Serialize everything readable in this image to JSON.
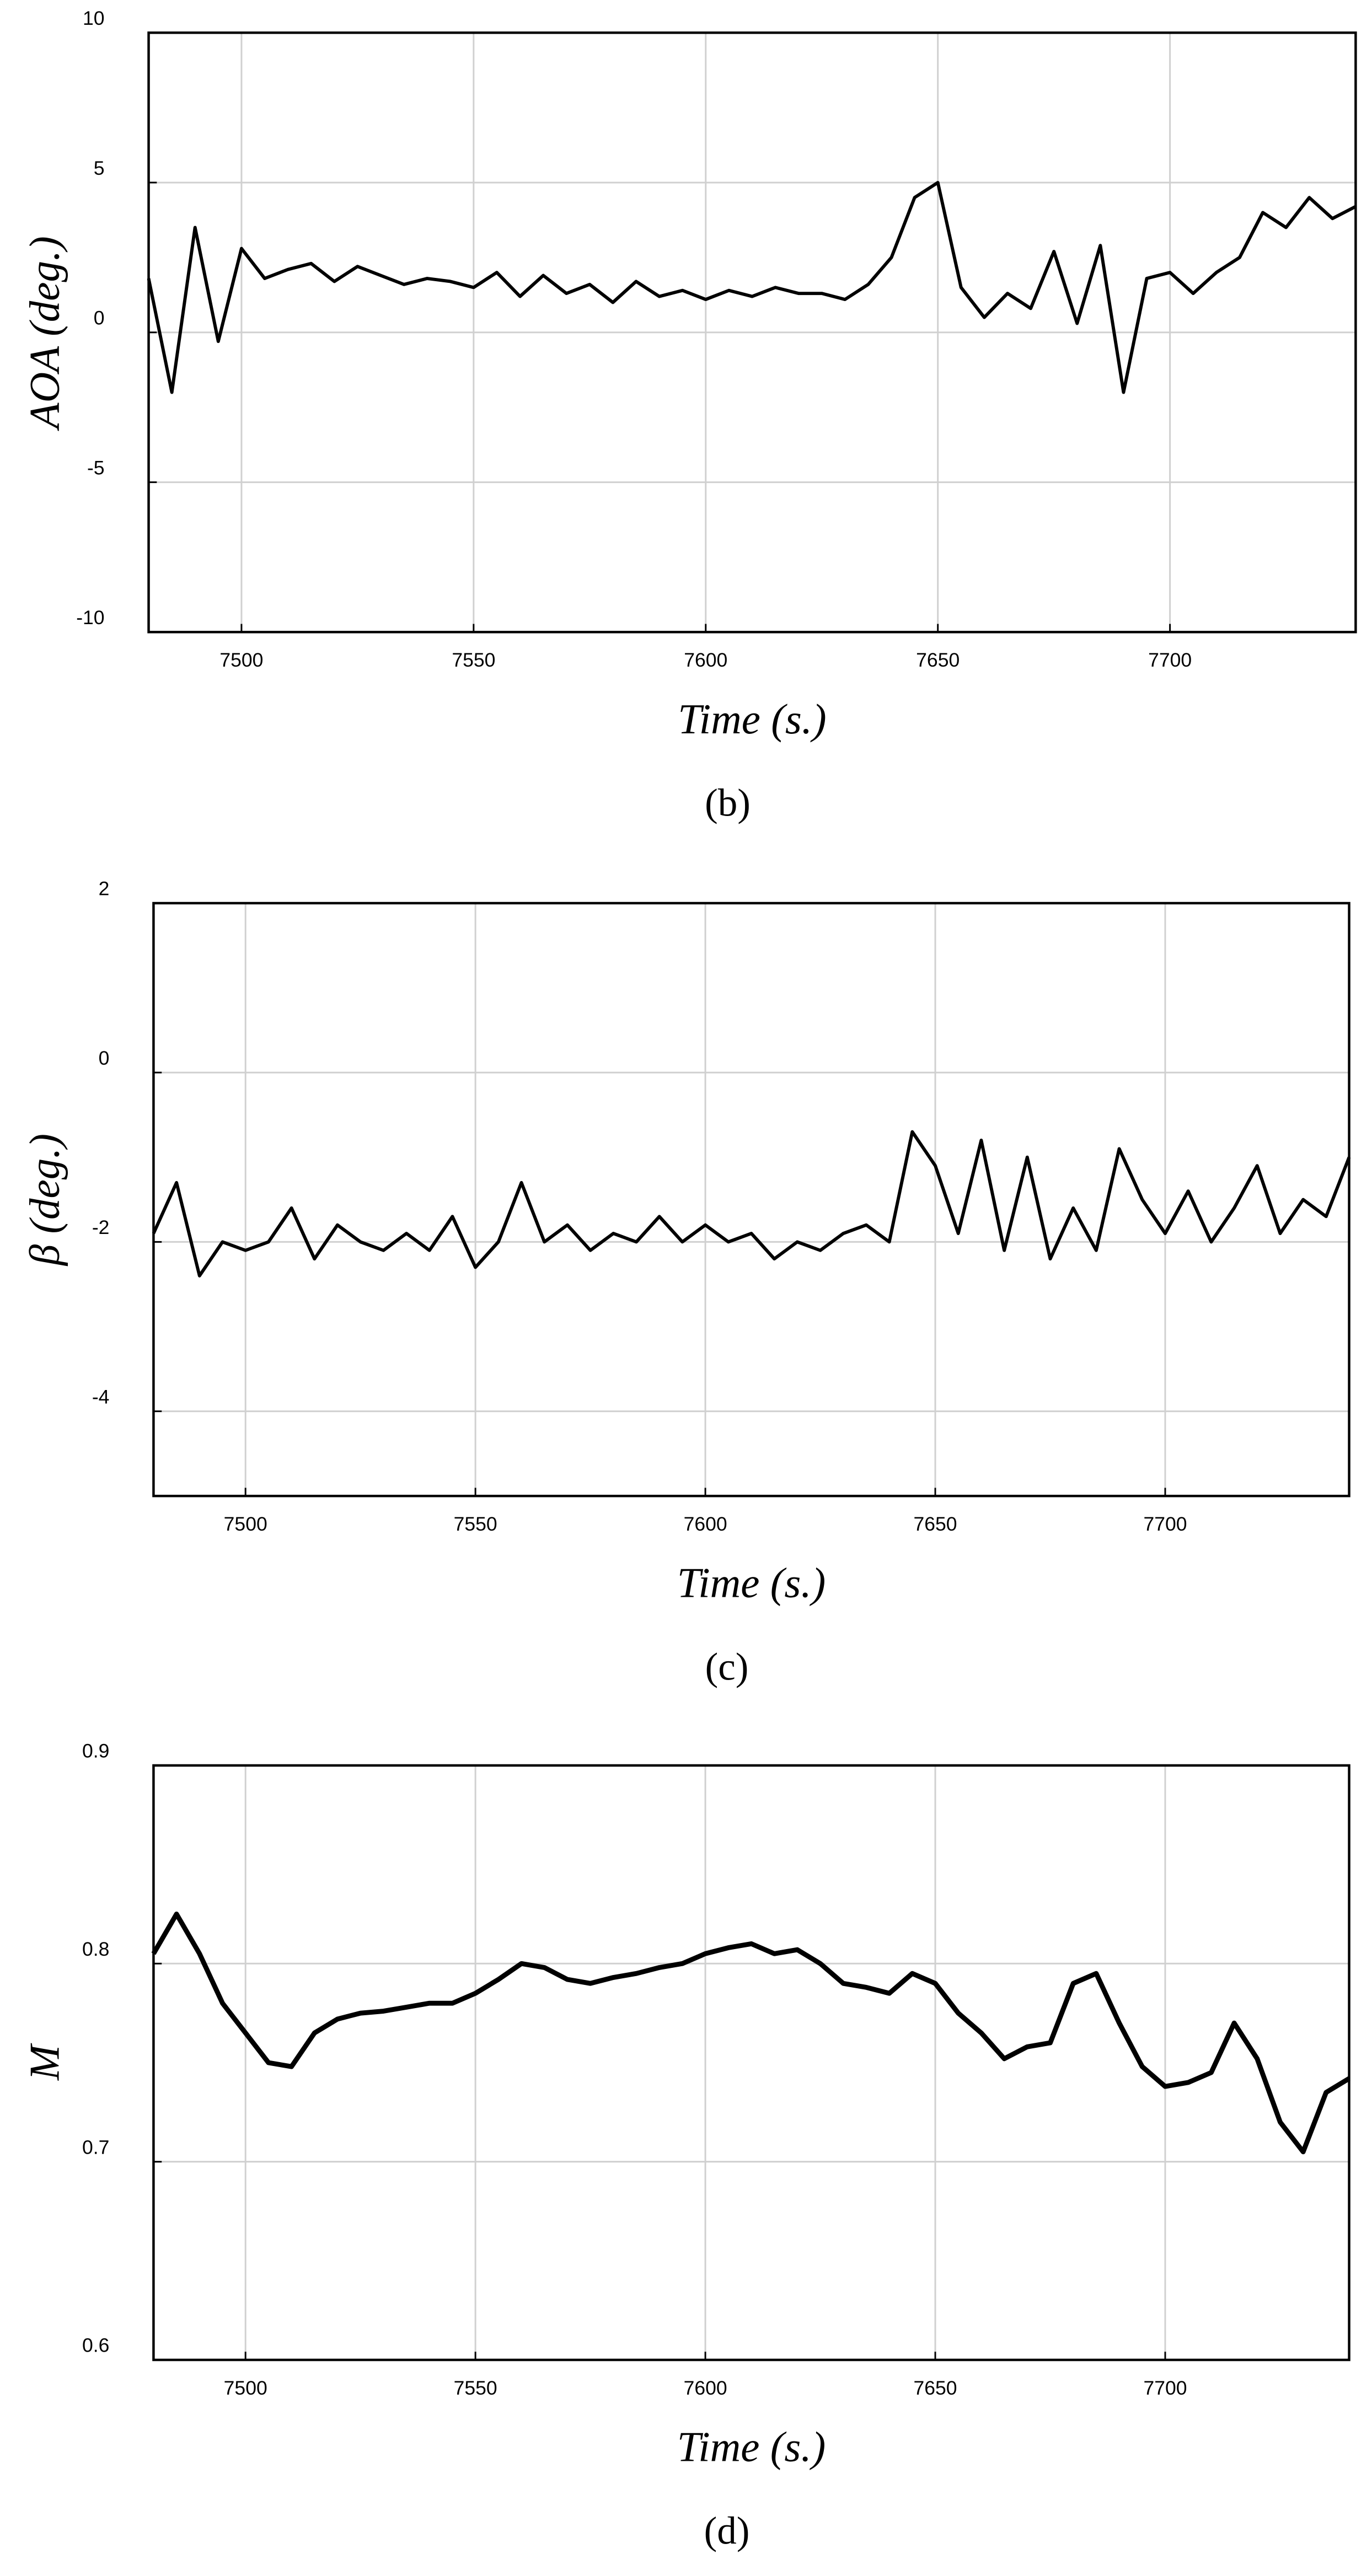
{
  "chart_data": [
    {
      "type": "line",
      "caption": "(b)",
      "x_label": "Time (s.)",
      "y_label": "AOA (deg.)",
      "color": "#000000",
      "grid": true,
      "xlim": [
        7480,
        7740
      ],
      "xticks": [
        7500,
        7550,
        7600,
        7650,
        7700
      ],
      "ylim": [
        -10,
        10
      ],
      "yticks": [
        -10,
        -5,
        0,
        5,
        10
      ],
      "x": [
        7480,
        7485,
        7490,
        7495,
        7500,
        7505,
        7510,
        7515,
        7520,
        7525,
        7530,
        7535,
        7540,
        7545,
        7550,
        7555,
        7560,
        7565,
        7570,
        7575,
        7580,
        7585,
        7590,
        7595,
        7600,
        7605,
        7610,
        7615,
        7620,
        7625,
        7630,
        7635,
        7640,
        7645,
        7650,
        7655,
        7660,
        7665,
        7670,
        7675,
        7680,
        7685,
        7690,
        7695,
        7700,
        7705,
        7710,
        7715,
        7720,
        7725,
        7730,
        7735,
        7740
      ],
      "values": [
        1.8,
        -2.0,
        3.5,
        -0.3,
        2.8,
        1.8,
        2.1,
        2.3,
        1.7,
        2.2,
        1.9,
        1.6,
        1.8,
        1.7,
        1.5,
        2.0,
        1.2,
        1.9,
        1.3,
        1.6,
        1.0,
        1.7,
        1.2,
        1.4,
        1.1,
        1.4,
        1.2,
        1.5,
        1.3,
        1.3,
        1.1,
        1.6,
        2.5,
        4.5,
        5.0,
        1.5,
        0.5,
        1.3,
        0.8,
        2.7,
        0.3,
        2.9,
        -2.0,
        1.8,
        2.0,
        1.3,
        2.0,
        2.5,
        4.0,
        3.5,
        4.5,
        3.8,
        4.2
      ]
    },
    {
      "type": "line",
      "caption": "(c)",
      "x_label": "Time (s.)",
      "y_label": "β (deg.)",
      "color": "#000000",
      "grid": true,
      "xlim": [
        7480,
        7740
      ],
      "xticks": [
        7500,
        7550,
        7600,
        7650,
        7700
      ],
      "ylim": [
        -5,
        2
      ],
      "yticks": [
        -4,
        -2,
        0,
        2
      ],
      "x": [
        7480,
        7485,
        7490,
        7495,
        7500,
        7505,
        7510,
        7515,
        7520,
        7525,
        7530,
        7535,
        7540,
        7545,
        7550,
        7555,
        7560,
        7565,
        7570,
        7575,
        7580,
        7585,
        7590,
        7595,
        7600,
        7605,
        7610,
        7615,
        7620,
        7625,
        7630,
        7635,
        7640,
        7645,
        7650,
        7655,
        7660,
        7665,
        7670,
        7675,
        7680,
        7685,
        7690,
        7695,
        7700,
        7705,
        7710,
        7715,
        7720,
        7725,
        7730,
        7735,
        7740
      ],
      "values": [
        -1.9,
        -1.3,
        -2.4,
        -2.0,
        -2.1,
        -2.0,
        -1.6,
        -2.2,
        -1.8,
        -2.0,
        -2.1,
        -1.9,
        -2.1,
        -1.7,
        -2.3,
        -2.0,
        -1.3,
        -2.0,
        -1.8,
        -2.1,
        -1.9,
        -2.0,
        -1.7,
        -2.0,
        -1.8,
        -2.0,
        -1.9,
        -2.2,
        -2.0,
        -2.1,
        -1.9,
        -1.8,
        -2.0,
        -0.7,
        -1.1,
        -1.9,
        -0.8,
        -2.1,
        -1.0,
        -2.2,
        -1.6,
        -2.1,
        -0.9,
        -1.5,
        -1.9,
        -1.4,
        -2.0,
        -1.6,
        -1.1,
        -1.9,
        -1.5,
        -1.7,
        -1.0
      ]
    },
    {
      "type": "line",
      "caption": "(d)",
      "x_label": "Time (s.)",
      "y_label": "M",
      "color": "#000000",
      "grid": true,
      "xlim": [
        7480,
        7740
      ],
      "xticks": [
        7500,
        7550,
        7600,
        7650,
        7700
      ],
      "ylim": [
        0.6,
        0.9
      ],
      "yticks": [
        0.6,
        0.7,
        0.8,
        0.9
      ],
      "x": [
        7480,
        7485,
        7490,
        7495,
        7500,
        7505,
        7510,
        7515,
        7520,
        7525,
        7530,
        7535,
        7540,
        7545,
        7550,
        7555,
        7560,
        7565,
        7570,
        7575,
        7580,
        7585,
        7590,
        7595,
        7600,
        7605,
        7610,
        7615,
        7620,
        7625,
        7630,
        7635,
        7640,
        7645,
        7650,
        7655,
        7660,
        7665,
        7670,
        7675,
        7680,
        7685,
        7690,
        7695,
        7700,
        7705,
        7710,
        7715,
        7720,
        7725,
        7730,
        7735,
        7740
      ],
      "values": [
        0.805,
        0.825,
        0.805,
        0.78,
        0.765,
        0.75,
        0.748,
        0.765,
        0.772,
        0.775,
        0.776,
        0.778,
        0.78,
        0.78,
        0.785,
        0.792,
        0.8,
        0.798,
        0.792,
        0.79,
        0.793,
        0.795,
        0.798,
        0.8,
        0.805,
        0.808,
        0.81,
        0.805,
        0.807,
        0.8,
        0.79,
        0.788,
        0.785,
        0.795,
        0.79,
        0.775,
        0.765,
        0.752,
        0.758,
        0.76,
        0.79,
        0.795,
        0.77,
        0.748,
        0.738,
        0.74,
        0.745,
        0.77,
        0.752,
        0.72,
        0.705,
        0.735,
        0.742
      ]
    }
  ]
}
